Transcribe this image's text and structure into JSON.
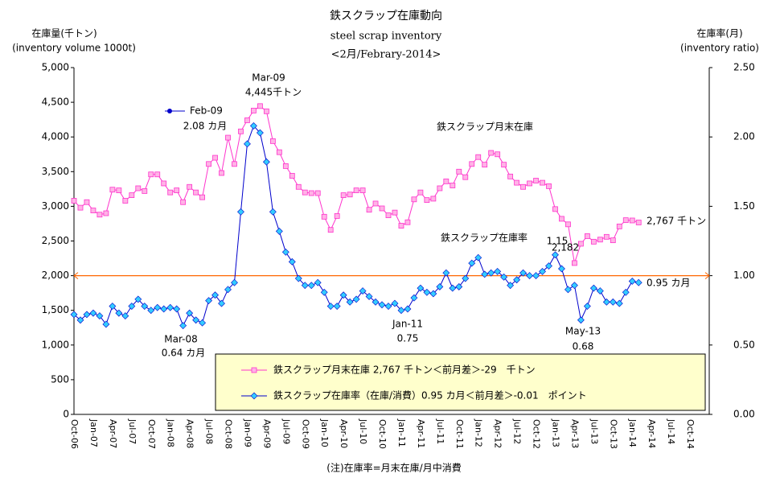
{
  "chart_data": {
    "type": "line",
    "title": "鉄スクラップ在庫動向",
    "subtitle": "steel scrap inventory",
    "subtitle2": "<2月/Febrary-2014>",
    "y_label": "在庫量(千トン)",
    "y_label2": "(inventory volume 1000t)",
    "y2_label": "在庫率(月)",
    "y2_label2": "(inventory ratio)",
    "footnote": "(注)在庫率=月末在庫/月中消費",
    "categories": [
      "Oct-06",
      null,
      null,
      "Jan-07",
      null,
      null,
      "Apr-07",
      null,
      null,
      "Jul-07",
      null,
      null,
      "Oct-07",
      null,
      null,
      "Jan-08",
      null,
      null,
      "Apr-08",
      null,
      null,
      "Jul-08",
      null,
      null,
      "Oct-08",
      null,
      null,
      "Jan-09",
      null,
      null,
      "Apr-09",
      null,
      null,
      "Jul-09",
      null,
      null,
      "Oct-09",
      null,
      null,
      "Jan-10",
      null,
      null,
      "Apr-10",
      null,
      null,
      "Jul-10",
      null,
      null,
      "Oct-10",
      null,
      null,
      "Jan-11",
      null,
      null,
      "Apr-11",
      null,
      null,
      "Jul-11",
      null,
      null,
      "Oct-11",
      null,
      null,
      "Jan-12",
      null,
      null,
      "Apr-12",
      null,
      null,
      "Jul-12",
      null,
      null,
      "Oct-12",
      null,
      null,
      "Jan-13",
      null,
      null,
      "Apr-13",
      null,
      null,
      "Jul-13",
      null,
      null,
      "Oct-13",
      null,
      null,
      "Jan-14",
      null,
      null,
      "Apr-14",
      null,
      null,
      "Jul-14",
      null,
      null,
      "Oct-14",
      null,
      null,
      null
    ],
    "series": [
      {
        "name": "鉄スクラップ月末在庫 2,767 千トン＜前月差＞-29　千トン",
        "color": "#ff33cc",
        "marker_fill": "#ffb3e6",
        "marker": "square",
        "values": [
          3080,
          2980,
          3060,
          2940,
          2880,
          2900,
          3240,
          3230,
          3080,
          3160,
          3260,
          3220,
          3460,
          3460,
          3330,
          3200,
          3230,
          3060,
          3280,
          3200,
          3130,
          3610,
          3700,
          3480,
          3990,
          3610,
          4080,
          4240,
          4380,
          4445,
          4370,
          3940,
          3780,
          3580,
          3440,
          3280,
          3200,
          3190,
          3190,
          2850,
          2660,
          2860,
          3160,
          3170,
          3230,
          3230,
          2950,
          3040,
          2970,
          2870,
          2910,
          2720,
          2770,
          3100,
          3200,
          3090,
          3110,
          3260,
          3360,
          3300,
          3500,
          3420,
          3610,
          3710,
          3600,
          3770,
          3750,
          3600,
          3430,
          3340,
          3280,
          3330,
          3370,
          3340,
          3290,
          2960,
          2820,
          2740,
          2182,
          2460,
          2570,
          2490,
          2520,
          2560,
          2510,
          2710,
          2800,
          2796,
          2767,
          null,
          null,
          null,
          null,
          null,
          null,
          null,
          null,
          null,
          null,
          null
        ]
      },
      {
        "name": "鉄スクラップ在庫率（在庫/消費）0.95 カ月＜前月差＞-0.01　ポイント",
        "color": "#0000cc",
        "marker_fill": "#33ccff",
        "marker": "diamond",
        "axis": "y2",
        "values": [
          0.72,
          0.68,
          0.72,
          0.73,
          0.71,
          0.65,
          0.78,
          0.73,
          0.71,
          0.78,
          0.83,
          0.78,
          0.75,
          0.77,
          0.76,
          0.77,
          0.76,
          0.64,
          0.73,
          0.68,
          0.66,
          0.82,
          0.86,
          0.8,
          0.9,
          0.95,
          1.46,
          1.95,
          2.08,
          2.03,
          1.82,
          1.46,
          1.32,
          1.17,
          1.1,
          0.98,
          0.93,
          0.93,
          0.95,
          0.88,
          0.78,
          0.78,
          0.86,
          0.81,
          0.83,
          0.89,
          0.85,
          0.81,
          0.79,
          0.78,
          0.8,
          0.75,
          0.76,
          0.84,
          0.91,
          0.88,
          0.87,
          0.92,
          1.02,
          0.91,
          0.92,
          0.98,
          1.09,
          1.13,
          1.01,
          1.02,
          1.03,
          0.99,
          0.93,
          0.97,
          1.02,
          1.0,
          1.0,
          1.03,
          1.07,
          1.15,
          1.05,
          0.9,
          0.93,
          0.68,
          0.78,
          0.91,
          0.89,
          0.81,
          0.81,
          0.8,
          0.88,
          0.96,
          0.95,
          null,
          null,
          null,
          null,
          null,
          null,
          null,
          null,
          null,
          null,
          null
        ]
      }
    ],
    "reference_line": {
      "axis": "y2",
      "value": 1.0,
      "color": "#ff6600"
    },
    "ylim": [
      0,
      5000
    ],
    "yticks": [
      0,
      500,
      {
        "value": 1000,
        "label": "1,000"
      },
      {
        "value": 1500,
        "label": "1,500"
      },
      {
        "value": 2000,
        "label": "2,000"
      },
      {
        "value": 2500,
        "label": "2,500"
      },
      {
        "value": 3000,
        "label": "3,000"
      },
      {
        "value": 3500,
        "label": "3,500"
      },
      {
        "value": 4000,
        "label": "4,000"
      },
      {
        "value": 4500,
        "label": "4,500"
      },
      {
        "value": 5000,
        "label": "5,000"
      }
    ],
    "y2lim": [
      0,
      2.5
    ],
    "y2ticks": [
      {
        "value": 0,
        "label": "0.00"
      },
      {
        "value": 0.5,
        "label": "0.50"
      },
      {
        "value": 1,
        "label": "1.00"
      },
      {
        "value": 1.5,
        "label": "1.50"
      },
      {
        "value": 2,
        "label": "2.00"
      },
      {
        "value": 2.5,
        "label": "2.50"
      }
    ],
    "annotations": [
      "Mar-09",
      "4,445千トン",
      "Feb-09",
      "2.08 カ月",
      "鉄スクラップ月末在庫",
      "鉄スクラップ在庫率",
      "1.15",
      "2,182",
      "2,767 千トン",
      "0.95 カ月",
      "Mar-08",
      "0.64 カ月",
      "Jan-11",
      "0.75",
      "May-13",
      "0.68"
    ]
  }
}
